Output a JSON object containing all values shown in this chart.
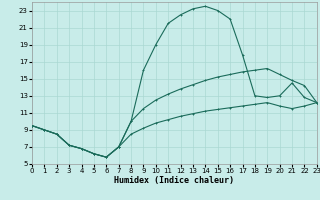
{
  "xlabel": "Humidex (Indice chaleur)",
  "background_color": "#c8ece9",
  "grid_color": "#aad8d3",
  "line_color": "#1a6b5a",
  "xlim": [
    0,
    23
  ],
  "ylim": [
    5,
    24
  ],
  "xticks": [
    0,
    1,
    2,
    3,
    4,
    5,
    6,
    7,
    8,
    9,
    10,
    11,
    12,
    13,
    14,
    15,
    16,
    17,
    18,
    19,
    20,
    21,
    22,
    23
  ],
  "yticks": [
    5,
    7,
    9,
    11,
    13,
    15,
    17,
    19,
    21,
    23
  ],
  "line1_x": [
    0,
    1,
    2,
    3,
    4,
    5,
    6,
    7,
    8,
    9,
    10,
    11,
    12,
    13,
    14,
    15,
    16,
    17,
    18,
    19,
    20,
    21,
    22,
    23
  ],
  "line1_y": [
    9.5,
    9.0,
    8.5,
    7.2,
    6.8,
    6.2,
    5.8,
    7.0,
    10.0,
    16.0,
    19.0,
    21.5,
    22.5,
    23.2,
    23.5,
    23.0,
    22.0,
    17.8,
    13.0,
    12.8,
    13.0,
    14.5,
    12.8,
    12.2
  ],
  "line2_x": [
    0,
    1,
    2,
    3,
    4,
    5,
    6,
    7,
    8,
    9,
    10,
    11,
    12,
    13,
    14,
    15,
    16,
    17,
    18,
    19,
    20,
    21,
    22,
    23
  ],
  "line2_y": [
    9.5,
    9.0,
    8.5,
    7.2,
    6.8,
    6.2,
    5.8,
    7.0,
    10.0,
    11.5,
    12.5,
    13.2,
    13.8,
    14.3,
    14.8,
    15.2,
    15.5,
    15.8,
    16.0,
    16.2,
    15.5,
    14.8,
    14.2,
    12.2
  ],
  "line3_x": [
    0,
    1,
    2,
    3,
    4,
    5,
    6,
    7,
    8,
    9,
    10,
    11,
    12,
    13,
    14,
    15,
    16,
    17,
    18,
    19,
    20,
    21,
    22,
    23
  ],
  "line3_y": [
    9.5,
    9.0,
    8.5,
    7.2,
    6.8,
    6.2,
    5.8,
    7.0,
    8.5,
    9.2,
    9.8,
    10.2,
    10.6,
    10.9,
    11.2,
    11.4,
    11.6,
    11.8,
    12.0,
    12.2,
    11.8,
    11.5,
    11.8,
    12.2
  ]
}
